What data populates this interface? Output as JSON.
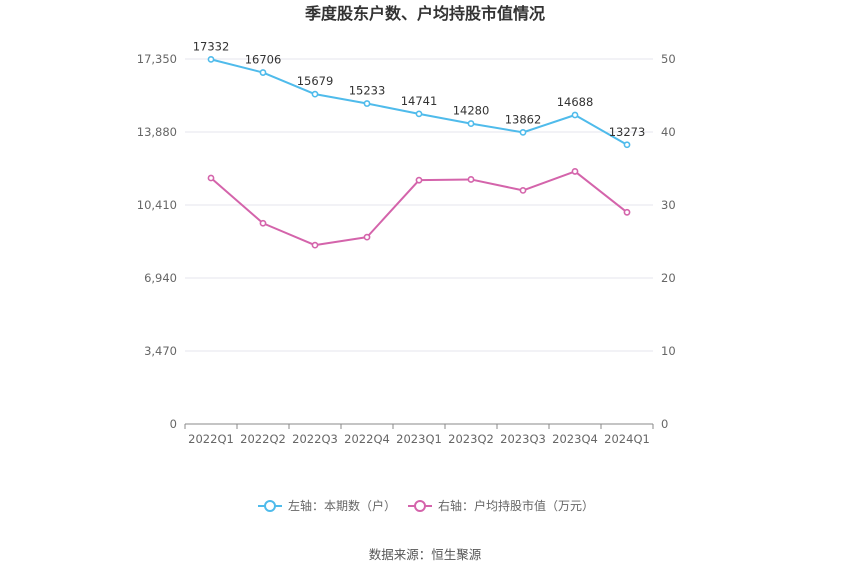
{
  "chart_data": {
    "type": "line",
    "title": "季度股东户数、户均持股市值情况",
    "categories": [
      "2022Q1",
      "2022Q2",
      "2022Q3",
      "2022Q4",
      "2023Q1",
      "2023Q2",
      "2023Q3",
      "2023Q4",
      "2024Q1"
    ],
    "left_axis": {
      "ticks": [
        "0",
        "3,470",
        "6,940",
        "10,410",
        "13,880",
        "17,350"
      ],
      "ylim": [
        0,
        17350
      ]
    },
    "right_axis": {
      "ticks": [
        "0",
        "10",
        "20",
        "30",
        "40",
        "50"
      ],
      "ylim": [
        0,
        50
      ]
    },
    "series": [
      {
        "name": "左轴：本期数（户）",
        "axis": "left",
        "color": "#4fbbeb",
        "values": [
          17332,
          16706,
          15679,
          15233,
          14741,
          14280,
          13862,
          14688,
          13273
        ],
        "labels": [
          "17332",
          "16706",
          "15679",
          "15233",
          "14741",
          "14280",
          "13862",
          "14688",
          "13273"
        ]
      },
      {
        "name": "右轴：户均持股市值（万元）",
        "axis": "right",
        "color": "#d464ab",
        "values": [
          33.7,
          27.5,
          24.5,
          25.6,
          33.4,
          33.5,
          32.0,
          34.6,
          29.0
        ]
      }
    ],
    "legend_position": "bottom",
    "grid": true
  },
  "source": "数据来源：恒生聚源"
}
